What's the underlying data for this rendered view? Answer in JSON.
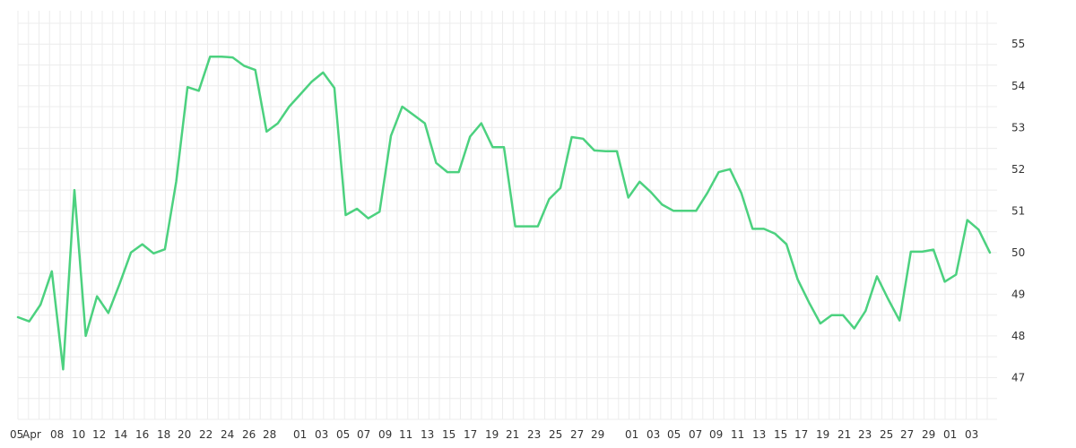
{
  "chart_data": {
    "type": "line",
    "title": "",
    "xlabel": "",
    "ylabel": "",
    "ylim": [
      46.0,
      55.8
    ],
    "y_ticks": [
      47,
      48,
      49,
      50,
      51,
      52,
      53,
      54,
      55
    ],
    "y_axis_side": "right",
    "grid": true,
    "legend": "none",
    "line_color": "#4cd17f",
    "x_tick_labels": [
      "05",
      "Apr",
      "08",
      "10",
      "12",
      "14",
      "16",
      "18",
      "20",
      "22",
      "24",
      "26",
      "28",
      "01",
      "03",
      "05",
      "07",
      "09",
      "11",
      "13",
      "15",
      "17",
      "19",
      "21",
      "23",
      "25",
      "27",
      "29",
      "01",
      "03",
      "05",
      "07",
      "09",
      "11",
      "13",
      "15",
      "17",
      "19",
      "21",
      "23",
      "25",
      "27",
      "29",
      "01",
      "03"
    ],
    "series": [
      {
        "values": [
          48.45,
          48.35,
          48.75,
          49.55,
          47.2,
          51.5,
          48.0,
          48.95,
          48.55,
          49.25,
          50.0,
          50.2,
          49.98,
          50.08,
          51.7,
          53.97,
          53.88,
          54.7,
          54.7,
          54.68,
          54.48,
          54.38,
          52.9,
          53.1,
          53.5,
          53.8,
          54.1,
          54.32,
          53.95,
          50.9,
          51.05,
          50.82,
          50.98,
          52.8,
          53.5,
          53.3,
          53.1,
          52.15,
          51.93,
          51.93,
          52.78,
          53.1,
          52.53,
          52.53,
          50.63,
          50.63,
          50.63,
          51.28,
          51.55,
          52.77,
          52.73,
          52.45,
          52.43,
          52.43,
          51.32,
          51.7,
          51.45,
          51.15,
          51.0,
          51.0,
          51.0,
          51.43,
          51.93,
          52.0,
          51.43,
          50.57,
          50.57,
          50.45,
          50.2,
          49.35,
          48.8,
          48.3,
          48.5,
          48.5,
          48.18,
          48.6,
          49.43,
          48.88,
          48.37,
          50.02,
          50.02,
          50.07,
          49.3,
          49.47,
          50.78,
          50.55,
          50.0
        ]
      }
    ]
  }
}
